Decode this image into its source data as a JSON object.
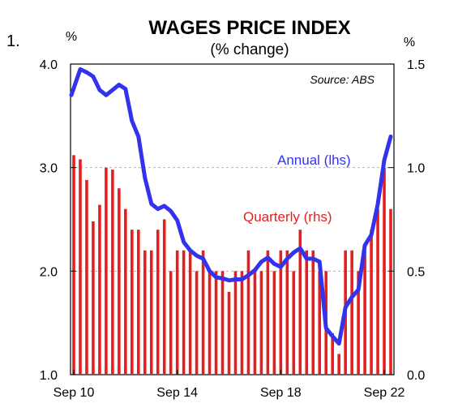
{
  "figure_number": "1.",
  "chart_data": {
    "type": "bar+line",
    "title": "WAGES PRICE INDEX",
    "subtitle": "(% change)",
    "source": "Source: ABS",
    "left_axis": {
      "unit": "%",
      "range": [
        1.0,
        4.0
      ],
      "ticks": [
        "1.0",
        "2.0",
        "3.0",
        "4.0"
      ],
      "tick_values": [
        1,
        2,
        3,
        4
      ]
    },
    "right_axis": {
      "unit": "%",
      "range": [
        0.0,
        1.5
      ],
      "ticks": [
        "0.0",
        "0.5",
        "1.0",
        "1.5"
      ],
      "tick_values": [
        0,
        0.5,
        1,
        1.5
      ]
    },
    "x_ticks": [
      {
        "label": "Sep 10",
        "index": 0
      },
      {
        "label": "Sep 14",
        "index": 16
      },
      {
        "label": "Sep 18",
        "index": 32
      },
      {
        "label": "Sep 22",
        "index": 48
      }
    ],
    "grid": "horizontal dashed",
    "quarters": [
      "Sep 10",
      "Dec 10",
      "Mar 11",
      "Jun 11",
      "Sep 11",
      "Dec 11",
      "Mar 12",
      "Jun 12",
      "Sep 12",
      "Dec 12",
      "Mar 13",
      "Jun 13",
      "Sep 13",
      "Dec 13",
      "Mar 14",
      "Jun 14",
      "Sep 14",
      "Dec 14",
      "Mar 15",
      "Jun 15",
      "Sep 15",
      "Dec 15",
      "Mar 16",
      "Jun 16",
      "Sep 16",
      "Dec 16",
      "Mar 17",
      "Jun 17",
      "Sep 17",
      "Dec 17",
      "Mar 18",
      "Jun 18",
      "Sep 18",
      "Dec 18",
      "Mar 19",
      "Jun 19",
      "Sep 19",
      "Dec 19",
      "Mar 20",
      "Jun 20",
      "Sep 20",
      "Dec 20",
      "Mar 21",
      "Jun 21",
      "Sep 21",
      "Dec 21",
      "Mar 22",
      "Jun 22",
      "Sep 22",
      "Dec 22"
    ],
    "series": [
      {
        "name": "Quarterly (rhs)",
        "type": "bar",
        "axis": "right",
        "color": "#e61e1e",
        "values": [
          1.06,
          1.04,
          0.94,
          0.74,
          0.82,
          1.0,
          0.99,
          0.9,
          0.8,
          0.7,
          0.7,
          0.6,
          0.6,
          0.7,
          0.75,
          0.5,
          0.6,
          0.6,
          0.6,
          0.5,
          0.6,
          0.5,
          0.5,
          0.5,
          0.4,
          0.5,
          0.5,
          0.6,
          0.5,
          0.5,
          0.6,
          0.5,
          0.6,
          0.6,
          0.5,
          0.7,
          0.6,
          0.6,
          0.5,
          0.5,
          0.2,
          0.1,
          0.6,
          0.6,
          0.5,
          0.6,
          0.7,
          0.8,
          1.0,
          0.8
        ]
      },
      {
        "name": "Annual (lhs)",
        "type": "line",
        "axis": "left",
        "color": "#3333ee",
        "values": [
          3.7,
          3.95,
          3.92,
          3.88,
          3.75,
          3.7,
          3.75,
          3.8,
          3.76,
          3.45,
          3.3,
          2.9,
          2.65,
          2.6,
          2.63,
          2.58,
          2.49,
          2.28,
          2.2,
          2.15,
          2.12,
          2.0,
          1.94,
          1.93,
          1.91,
          1.92,
          1.92,
          1.96,
          2.01,
          2.09,
          2.13,
          2.07,
          2.04,
          2.12,
          2.18,
          2.22,
          2.12,
          2.12,
          2.09,
          1.45,
          1.37,
          1.3,
          1.65,
          1.75,
          1.82,
          2.25,
          2.35,
          2.65,
          3.07,
          3.3
        ]
      }
    ],
    "annotations": [
      {
        "text": "Annual (lhs)",
        "color": "#3333ee"
      },
      {
        "text": "Quarterly (rhs)",
        "color": "#e61e1e"
      }
    ]
  }
}
